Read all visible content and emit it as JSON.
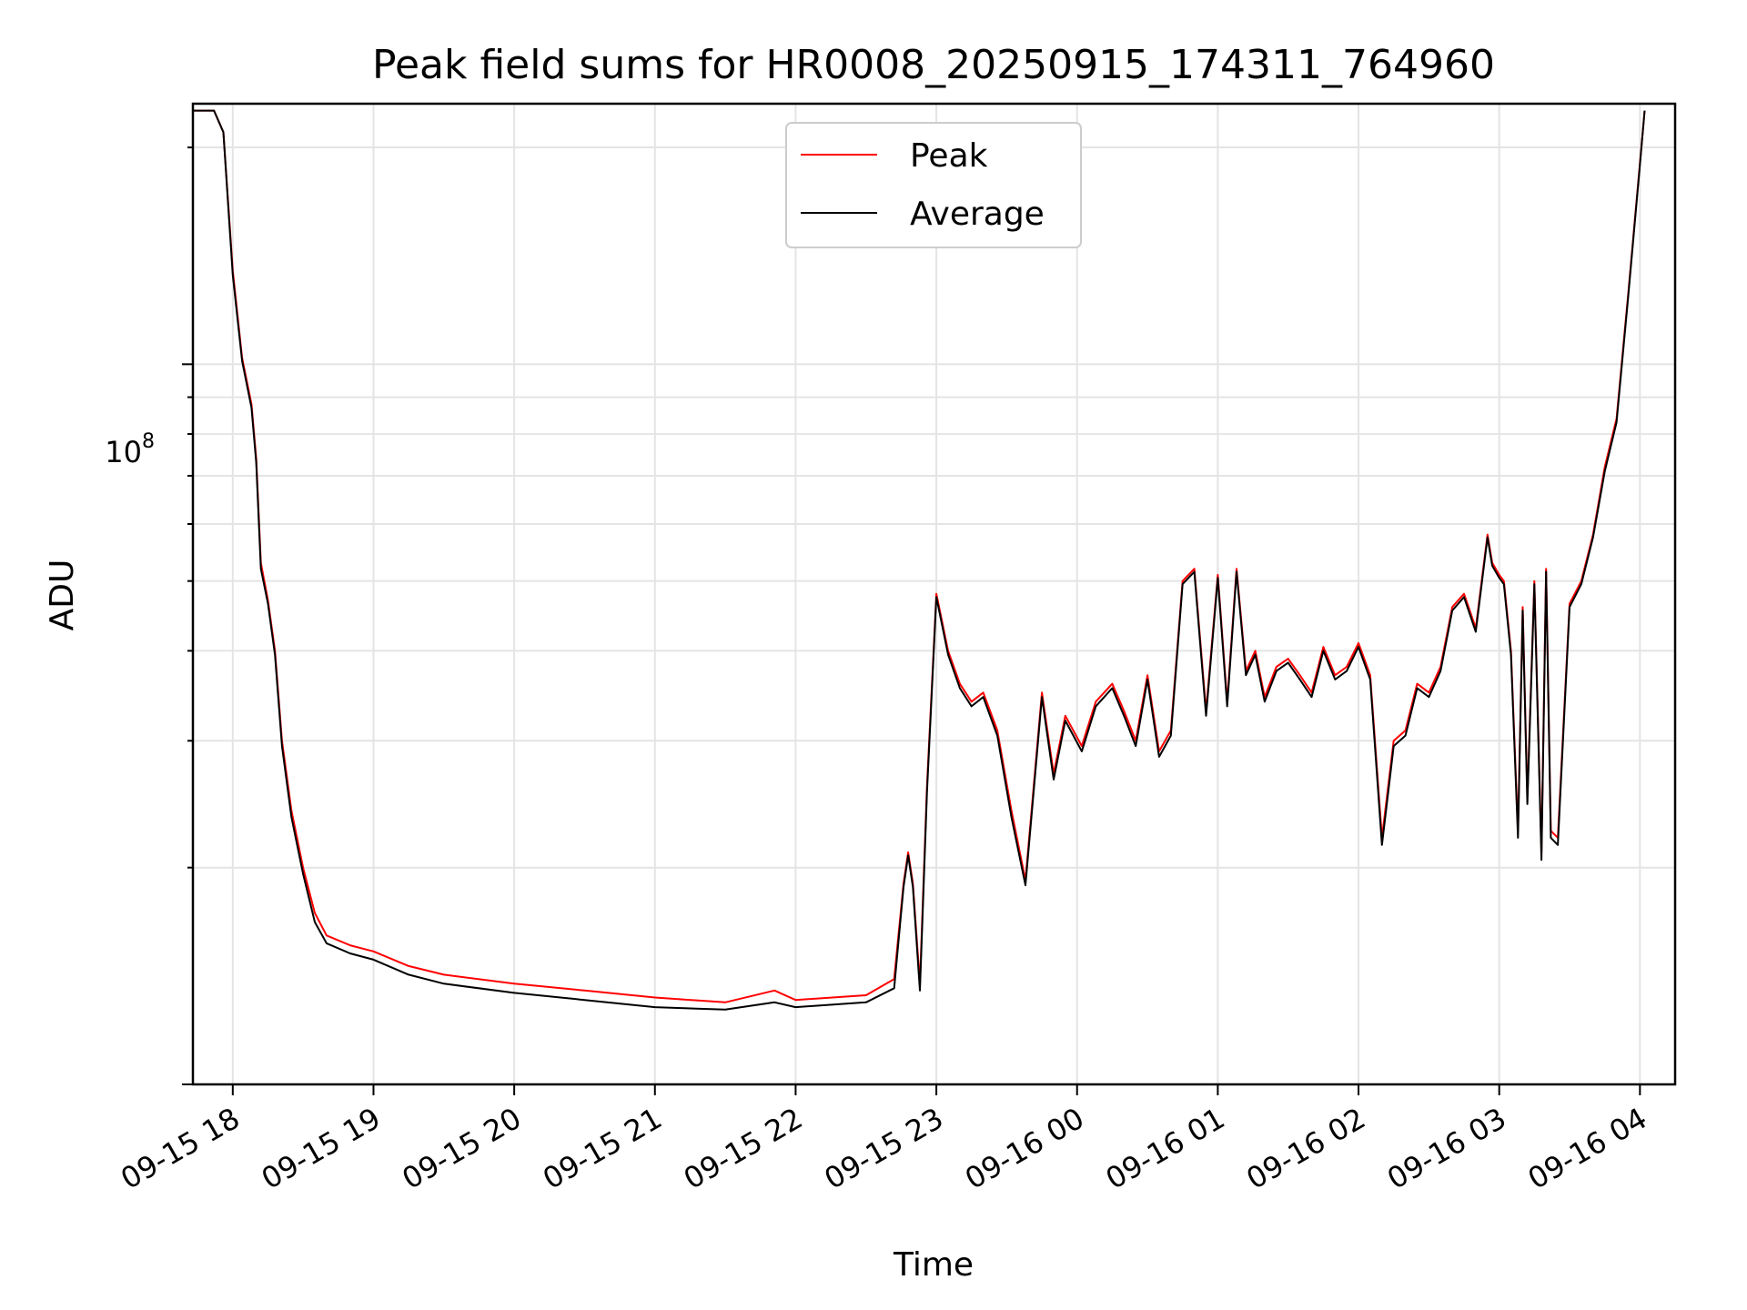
{
  "chart_data": {
    "type": "line",
    "title": "Peak field sums for HR0008_20250915_174311_764960",
    "xlabel": "Time",
    "ylabel": "ADU",
    "y_scale": "log",
    "ylim": [
      10000000,
      230000000
    ],
    "xlim": [
      "2025-09-15 17:43",
      "2025-09-16 04:15"
    ],
    "x_ticks": [
      "09-15 18",
      "09-15 19",
      "09-15 20",
      "09-15 21",
      "09-15 22",
      "09-15 23",
      "09-16 00",
      "09-16 01",
      "09-16 02",
      "09-16 03",
      "09-16 04"
    ],
    "y_ticks": [
      "10^8"
    ],
    "y_tick_base": "10",
    "y_tick_exp": "8",
    "grid": true,
    "legend": {
      "placement": "top-center",
      "entries": [
        "Peak",
        "Average"
      ]
    },
    "series": [
      {
        "name": "Peak",
        "color": "#ff0000",
        "x": [
          "2025-09-15 17:43",
          "2025-09-15 17:52",
          "2025-09-15 17:56",
          "2025-09-15 18:00",
          "2025-09-15 18:04",
          "2025-09-15 18:08",
          "2025-09-15 18:10",
          "2025-09-15 18:12",
          "2025-09-15 18:15",
          "2025-09-15 18:18",
          "2025-09-15 18:21",
          "2025-09-15 18:25",
          "2025-09-15 18:30",
          "2025-09-15 18:35",
          "2025-09-15 18:40",
          "2025-09-15 18:50",
          "2025-09-15 19:00",
          "2025-09-15 19:15",
          "2025-09-15 19:30",
          "2025-09-15 20:00",
          "2025-09-15 20:30",
          "2025-09-15 21:00",
          "2025-09-15 21:30",
          "2025-09-15 21:51",
          "2025-09-15 22:00",
          "2025-09-15 22:30",
          "2025-09-15 22:42",
          "2025-09-15 22:46",
          "2025-09-15 22:48",
          "2025-09-15 22:50",
          "2025-09-15 22:53",
          "2025-09-15 22:56",
          "2025-09-15 23:00",
          "2025-09-15 23:05",
          "2025-09-15 23:10",
          "2025-09-15 23:15",
          "2025-09-15 23:20",
          "2025-09-15 23:26",
          "2025-09-15 23:32",
          "2025-09-15 23:38",
          "2025-09-15 23:45",
          "2025-09-15 23:50",
          "2025-09-15 23:55",
          "2025-09-16 00:02",
          "2025-09-16 00:08",
          "2025-09-16 00:15",
          "2025-09-16 00:20",
          "2025-09-16 00:25",
          "2025-09-16 00:30",
          "2025-09-16 00:35",
          "2025-09-16 00:40",
          "2025-09-16 00:45",
          "2025-09-16 00:50",
          "2025-09-16 00:55",
          "2025-09-16 01:00",
          "2025-09-16 01:04",
          "2025-09-16 01:08",
          "2025-09-16 01:12",
          "2025-09-16 01:16",
          "2025-09-16 01:20",
          "2025-09-16 01:25",
          "2025-09-16 01:30",
          "2025-09-16 01:35",
          "2025-09-16 01:40",
          "2025-09-16 01:45",
          "2025-09-16 01:50",
          "2025-09-16 01:55",
          "2025-09-16 02:00",
          "2025-09-16 02:05",
          "2025-09-16 02:10",
          "2025-09-16 02:15",
          "2025-09-16 02:20",
          "2025-09-16 02:25",
          "2025-09-16 02:30",
          "2025-09-16 02:35",
          "2025-09-16 02:40",
          "2025-09-16 02:45",
          "2025-09-16 02:50",
          "2025-09-16 02:55",
          "2025-09-16 02:57",
          "2025-09-16 03:00",
          "2025-09-16 03:02",
          "2025-09-16 03:05",
          "2025-09-16 03:08",
          "2025-09-16 03:10",
          "2025-09-16 03:12",
          "2025-09-16 03:15",
          "2025-09-16 03:18",
          "2025-09-16 03:20",
          "2025-09-16 03:22",
          "2025-09-16 03:25",
          "2025-09-16 03:30",
          "2025-09-16 03:35",
          "2025-09-16 03:40",
          "2025-09-16 03:45",
          "2025-09-16 03:50",
          "2025-09-16 03:55",
          "2025-09-16 04:00",
          "2025-09-16 04:02"
        ],
        "y": [
          225000000,
          225000000,
          210000000,
          135000000,
          102000000,
          88000000,
          74000000,
          53000000,
          47000000,
          40000000,
          30000000,
          24000000,
          20000000,
          17300000,
          16100000,
          15600000,
          15300000,
          14600000,
          14200000,
          13800000,
          13500000,
          13200000,
          13000000,
          13500000,
          13100000,
          13300000,
          14000000,
          19000000,
          21000000,
          19000000,
          13800000,
          26000000,
          48000000,
          40000000,
          36000000,
          34000000,
          35000000,
          31000000,
          24000000,
          19200000,
          35000000,
          27000000,
          32500000,
          29500000,
          34000000,
          36000000,
          33000000,
          30000000,
          37000000,
          29000000,
          31000000,
          50000000,
          52000000,
          33000000,
          51000000,
          34000000,
          52000000,
          37500000,
          40000000,
          34500000,
          38000000,
          39000000,
          37000000,
          35000000,
          40500000,
          37000000,
          38000000,
          41000000,
          37000000,
          22000000,
          30000000,
          31000000,
          36000000,
          35000000,
          38000000,
          46000000,
          48000000,
          43000000,
          58000000,
          53000000,
          51000000,
          50000000,
          40000000,
          22500000,
          46000000,
          25000000,
          50000000,
          21000000,
          52000000,
          22500000,
          22000000,
          46500000,
          50000000,
          58000000,
          72000000,
          84000000,
          125000000,
          190000000,
          225000000
        ]
      },
      {
        "name": "Average",
        "color": "#000000",
        "x": [
          "2025-09-15 17:43",
          "2025-09-15 17:52",
          "2025-09-15 17:56",
          "2025-09-15 18:00",
          "2025-09-15 18:04",
          "2025-09-15 18:08",
          "2025-09-15 18:10",
          "2025-09-15 18:12",
          "2025-09-15 18:15",
          "2025-09-15 18:18",
          "2025-09-15 18:21",
          "2025-09-15 18:25",
          "2025-09-15 18:30",
          "2025-09-15 18:35",
          "2025-09-15 18:40",
          "2025-09-15 18:50",
          "2025-09-15 19:00",
          "2025-09-15 19:15",
          "2025-09-15 19:30",
          "2025-09-15 20:00",
          "2025-09-15 20:30",
          "2025-09-15 21:00",
          "2025-09-15 21:30",
          "2025-09-15 21:51",
          "2025-09-15 22:00",
          "2025-09-15 22:30",
          "2025-09-15 22:42",
          "2025-09-15 22:46",
          "2025-09-15 22:48",
          "2025-09-15 22:50",
          "2025-09-15 22:53",
          "2025-09-15 22:56",
          "2025-09-15 23:00",
          "2025-09-15 23:05",
          "2025-09-15 23:10",
          "2025-09-15 23:15",
          "2025-09-15 23:20",
          "2025-09-15 23:26",
          "2025-09-15 23:32",
          "2025-09-15 23:38",
          "2025-09-15 23:45",
          "2025-09-15 23:50",
          "2025-09-15 23:55",
          "2025-09-16 00:02",
          "2025-09-16 00:08",
          "2025-09-16 00:15",
          "2025-09-16 00:20",
          "2025-09-16 00:25",
          "2025-09-16 00:30",
          "2025-09-16 00:35",
          "2025-09-16 00:40",
          "2025-09-16 00:45",
          "2025-09-16 00:50",
          "2025-09-16 00:55",
          "2025-09-16 01:00",
          "2025-09-16 01:04",
          "2025-09-16 01:08",
          "2025-09-16 01:12",
          "2025-09-16 01:16",
          "2025-09-16 01:20",
          "2025-09-16 01:25",
          "2025-09-16 01:30",
          "2025-09-16 01:35",
          "2025-09-16 01:40",
          "2025-09-16 01:45",
          "2025-09-16 01:50",
          "2025-09-16 01:55",
          "2025-09-16 02:00",
          "2025-09-16 02:05",
          "2025-09-16 02:10",
          "2025-09-16 02:15",
          "2025-09-16 02:20",
          "2025-09-16 02:25",
          "2025-09-16 02:30",
          "2025-09-16 02:35",
          "2025-09-16 02:40",
          "2025-09-16 02:45",
          "2025-09-16 02:50",
          "2025-09-16 02:55",
          "2025-09-16 02:57",
          "2025-09-16 03:00",
          "2025-09-16 03:02",
          "2025-09-16 03:05",
          "2025-09-16 03:08",
          "2025-09-16 03:10",
          "2025-09-16 03:12",
          "2025-09-16 03:15",
          "2025-09-16 03:18",
          "2025-09-16 03:20",
          "2025-09-16 03:22",
          "2025-09-16 03:25",
          "2025-09-16 03:30",
          "2025-09-16 03:35",
          "2025-09-16 03:40",
          "2025-09-16 03:45",
          "2025-09-16 03:50",
          "2025-09-16 03:55",
          "2025-09-16 04:00",
          "2025-09-16 04:02"
        ],
        "y": [
          225000000,
          225000000,
          210000000,
          133000000,
          101000000,
          87000000,
          73000000,
          52000000,
          46500000,
          39500000,
          29500000,
          23500000,
          19600000,
          16800000,
          15700000,
          15200000,
          14900000,
          14200000,
          13800000,
          13400000,
          13100000,
          12800000,
          12700000,
          13000000,
          12800000,
          13000000,
          13600000,
          18800000,
          20800000,
          18800000,
          13500000,
          25500000,
          47500000,
          39500000,
          35500000,
          33500000,
          34500000,
          30500000,
          23500000,
          18900000,
          34500000,
          26500000,
          32000000,
          29000000,
          33500000,
          35500000,
          32500000,
          29500000,
          36500000,
          28500000,
          30500000,
          49500000,
          51500000,
          32500000,
          50500000,
          33500000,
          51500000,
          37000000,
          39500000,
          34000000,
          37500000,
          38500000,
          36500000,
          34500000,
          40000000,
          36500000,
          37500000,
          40500000,
          36500000,
          21500000,
          29500000,
          30500000,
          35500000,
          34500000,
          37500000,
          45500000,
          47500000,
          42500000,
          57500000,
          52500000,
          50500000,
          49500000,
          39500000,
          22000000,
          45500000,
          24500000,
          49500000,
          20500000,
          51500000,
          22000000,
          21500000,
          46000000,
          49500000,
          57500000,
          71000000,
          83000000,
          124000000,
          189000000,
          225000000
        ]
      }
    ]
  }
}
